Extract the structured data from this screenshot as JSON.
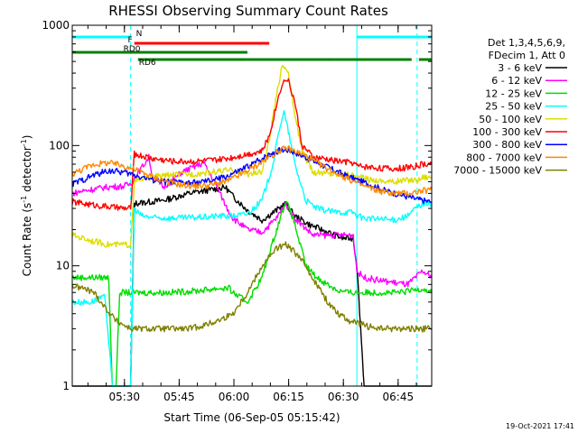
{
  "chart_data": {
    "type": "line",
    "title": "RHESSI Observing Summary Count Rates",
    "xlabel": "Start Time (06-Sep-05 05:15:42)",
    "ylabel": "Count Rate (s",
    "ylabel_sup": "-1",
    "ylabel_suffix": " detector",
    "ylabel_close": ")",
    "y_scale": "log",
    "ylim": [
      1,
      1000
    ],
    "xlim_minutes": [
      0,
      98.5
    ],
    "y_ticks": [
      {
        "label": "1",
        "value": 1
      },
      {
        "label": "10",
        "value": 10
      },
      {
        "label": "100",
        "value": 100
      },
      {
        "label": "1000",
        "value": 1000
      }
    ],
    "x_ticks": [
      {
        "label": "05:30",
        "minute": 14.3
      },
      {
        "label": "05:45",
        "minute": 29.3
      },
      {
        "label": "06:00",
        "minute": 44.3
      },
      {
        "label": "06:15",
        "minute": 59.3
      },
      {
        "label": "06:30",
        "minute": 74.3
      },
      {
        "label": "06:45",
        "minute": 89.3
      }
    ],
    "legend_header": [
      "Det 1,3,4,5,6,9,",
      "FDecim 1, Att 0"
    ],
    "series": [
      {
        "name": "3 - 6 keV",
        "color": "#000000",
        "points": [
          [
            0,
            1
          ],
          [
            16,
            1
          ],
          [
            17,
            33
          ],
          [
            25,
            35
          ],
          [
            32,
            40
          ],
          [
            42,
            45
          ],
          [
            44,
            38
          ],
          [
            48,
            29
          ],
          [
            52,
            24
          ],
          [
            56,
            29
          ],
          [
            58.5,
            33
          ],
          [
            61,
            26
          ],
          [
            65,
            22
          ],
          [
            70,
            19
          ],
          [
            74,
            17
          ],
          [
            77,
            17
          ],
          [
            78,
            10
          ],
          [
            80,
            1
          ],
          [
            98.5,
            1
          ]
        ]
      },
      {
        "name": "6 - 12 keV",
        "color": "#ff00ff",
        "points": [
          [
            0,
            40
          ],
          [
            3,
            42
          ],
          [
            9,
            45
          ],
          [
            14,
            46
          ],
          [
            16,
            48
          ],
          [
            21,
            80
          ],
          [
            22,
            55
          ],
          [
            25,
            45
          ],
          [
            30,
            60
          ],
          [
            36,
            72
          ],
          [
            39,
            50
          ],
          [
            42,
            32
          ],
          [
            44,
            25
          ],
          [
            48,
            20
          ],
          [
            52,
            19
          ],
          [
            56,
            25
          ],
          [
            58.5,
            33
          ],
          [
            61,
            25
          ],
          [
            66,
            18
          ],
          [
            72,
            18
          ],
          [
            77,
            18
          ],
          [
            78,
            9
          ],
          [
            80,
            8
          ],
          [
            85,
            7.5
          ],
          [
            92,
            7
          ],
          [
            96,
            9
          ],
          [
            98.5,
            8
          ]
        ]
      },
      {
        "name": "12 - 25 keV",
        "color": "#00dd00",
        "points": [
          [
            0,
            8
          ],
          [
            6,
            8
          ],
          [
            10,
            8
          ],
          [
            11,
            1
          ],
          [
            12,
            1
          ],
          [
            13,
            6
          ],
          [
            14,
            6
          ],
          [
            18,
            6
          ],
          [
            26,
            6
          ],
          [
            34,
            6.2
          ],
          [
            40,
            6.5
          ],
          [
            43,
            6.5
          ],
          [
            44,
            6
          ],
          [
            48,
            5
          ],
          [
            52,
            8
          ],
          [
            56,
            20
          ],
          [
            58.5,
            35
          ],
          [
            60.5,
            25
          ],
          [
            64,
            10
          ],
          [
            67,
            8
          ],
          [
            70,
            7
          ],
          [
            73,
            6.2
          ],
          [
            76,
            6
          ],
          [
            79,
            6
          ],
          [
            84,
            6
          ],
          [
            90,
            6
          ],
          [
            96,
            6.5
          ],
          [
            98.5,
            6
          ]
        ]
      },
      {
        "name": "25 - 50 keV",
        "color": "#00ffff",
        "points": [
          [
            0,
            5
          ],
          [
            5,
            5
          ],
          [
            9,
            5.5
          ],
          [
            11,
            1
          ],
          [
            16,
            1
          ],
          [
            17,
            30
          ],
          [
            19,
            26
          ],
          [
            23,
            25
          ],
          [
            30,
            25
          ],
          [
            37,
            25.5
          ],
          [
            40,
            26
          ],
          [
            44,
            26
          ],
          [
            48,
            27
          ],
          [
            52,
            35
          ],
          [
            55,
            70
          ],
          [
            57,
            150
          ],
          [
            58,
            190
          ],
          [
            59.5,
            120
          ],
          [
            61,
            70
          ],
          [
            64,
            35
          ],
          [
            67,
            30
          ],
          [
            72,
            28
          ],
          [
            77,
            28
          ],
          [
            78,
            26
          ],
          [
            80,
            25
          ],
          [
            88,
            24
          ],
          [
            92,
            26
          ],
          [
            94,
            30
          ],
          [
            96,
            33
          ],
          [
            98.5,
            33
          ]
        ]
      },
      {
        "name": "50 - 100 keV",
        "color": "#dddd00",
        "points": [
          [
            0,
            18
          ],
          [
            3,
            17
          ],
          [
            6,
            16
          ],
          [
            10,
            15
          ],
          [
            14,
            15
          ],
          [
            16,
            15
          ],
          [
            17,
            50
          ],
          [
            22,
            55
          ],
          [
            27,
            57
          ],
          [
            33,
            58
          ],
          [
            38,
            60
          ],
          [
            42,
            62
          ],
          [
            44,
            62
          ],
          [
            48,
            58
          ],
          [
            52,
            60
          ],
          [
            54,
            110
          ],
          [
            56,
            260
          ],
          [
            57.5,
            470
          ],
          [
            59,
            430
          ],
          [
            61,
            180
          ],
          [
            63,
            90
          ],
          [
            66,
            60
          ],
          [
            72,
            58
          ],
          [
            77,
            57
          ],
          [
            78,
            55
          ],
          [
            82,
            52
          ],
          [
            88,
            50
          ],
          [
            92,
            52
          ],
          [
            95,
            52
          ],
          [
            96,
            55
          ],
          [
            98.5,
            55
          ]
        ]
      },
      {
        "name": "100 - 300 keV",
        "color": "#ff0000",
        "points": [
          [
            0,
            34
          ],
          [
            3,
            33
          ],
          [
            6,
            32
          ],
          [
            10,
            31
          ],
          [
            14,
            30
          ],
          [
            16,
            30
          ],
          [
            17,
            85
          ],
          [
            22,
            78
          ],
          [
            28,
            74
          ],
          [
            34,
            74
          ],
          [
            40,
            76
          ],
          [
            44,
            80
          ],
          [
            48,
            85
          ],
          [
            52,
            90
          ],
          [
            54,
            120
          ],
          [
            56,
            220
          ],
          [
            57.5,
            330
          ],
          [
            59,
            360
          ],
          [
            61,
            230
          ],
          [
            63,
            100
          ],
          [
            66,
            80
          ],
          [
            72,
            75
          ],
          [
            77,
            72
          ],
          [
            78,
            68
          ],
          [
            82,
            66
          ],
          [
            88,
            64
          ],
          [
            92,
            66
          ],
          [
            95,
            68
          ],
          [
            96,
            70
          ],
          [
            98.5,
            70
          ]
        ]
      },
      {
        "name": "300 - 800 keV",
        "color": "#0000ff",
        "points": [
          [
            0,
            48
          ],
          [
            3,
            52
          ],
          [
            6,
            57
          ],
          [
            10,
            62
          ],
          [
            14,
            60
          ],
          [
            18,
            56
          ],
          [
            22,
            52
          ],
          [
            26,
            50
          ],
          [
            30,
            49
          ],
          [
            34,
            49
          ],
          [
            38,
            51
          ],
          [
            42,
            55
          ],
          [
            46,
            62
          ],
          [
            50,
            72
          ],
          [
            54,
            85
          ],
          [
            57,
            92
          ],
          [
            59,
            92
          ],
          [
            61,
            88
          ],
          [
            64,
            80
          ],
          [
            67,
            72
          ],
          [
            70,
            66
          ],
          [
            73,
            60
          ],
          [
            76,
            55
          ],
          [
            78,
            52
          ],
          [
            82,
            47
          ],
          [
            86,
            42
          ],
          [
            90,
            39
          ],
          [
            94,
            36
          ],
          [
            96,
            35
          ],
          [
            98.5,
            34
          ]
        ]
      },
      {
        "name": "800 - 7000 keV",
        "color": "#ff8800",
        "points": [
          [
            0,
            58
          ],
          [
            3,
            64
          ],
          [
            6,
            70
          ],
          [
            10,
            72
          ],
          [
            14,
            68
          ],
          [
            18,
            62
          ],
          [
            22,
            55
          ],
          [
            26,
            50
          ],
          [
            30,
            47
          ],
          [
            34,
            46
          ],
          [
            38,
            47
          ],
          [
            42,
            50
          ],
          [
            46,
            57
          ],
          [
            50,
            67
          ],
          [
            54,
            80
          ],
          [
            57,
            92
          ],
          [
            59,
            95
          ],
          [
            61,
            90
          ],
          [
            64,
            82
          ],
          [
            67,
            72
          ],
          [
            70,
            64
          ],
          [
            73,
            58
          ],
          [
            76,
            52
          ],
          [
            80,
            46
          ],
          [
            84,
            42
          ],
          [
            88,
            40
          ],
          [
            92,
            40
          ],
          [
            96,
            42
          ],
          [
            98.5,
            43
          ]
        ]
      },
      {
        "name": "7000 - 15000 keV",
        "color": "#808000",
        "points": [
          [
            0,
            6.8
          ],
          [
            3,
            6.5
          ],
          [
            6,
            6
          ],
          [
            9,
            4.5
          ],
          [
            12,
            3.5
          ],
          [
            16,
            3
          ],
          [
            20,
            3
          ],
          [
            26,
            3
          ],
          [
            32,
            3
          ],
          [
            36,
            3.2
          ],
          [
            40,
            3.5
          ],
          [
            44,
            4
          ],
          [
            48,
            6
          ],
          [
            52,
            10
          ],
          [
            56,
            14
          ],
          [
            58.5,
            15
          ],
          [
            61,
            13
          ],
          [
            64,
            10
          ],
          [
            67,
            7
          ],
          [
            70,
            5
          ],
          [
            73,
            4
          ],
          [
            76,
            3.5
          ],
          [
            80,
            3.2
          ],
          [
            84,
            3
          ],
          [
            90,
            3
          ],
          [
            96,
            3
          ],
          [
            98.5,
            3
          ]
        ]
      }
    ],
    "coverage_markers": [
      {
        "label": "N",
        "start_minute": 0,
        "end_minute": 16,
        "color": "#00ffff"
      },
      {
        "label": "",
        "start_minute": 78,
        "end_minute": 98.5,
        "color": "#00ffff"
      },
      {
        "label": "F",
        "start_minute": 17,
        "end_minute": 54,
        "color": "#ff0000"
      },
      {
        "label": "RD0",
        "start_minute": 0,
        "end_minute": 48,
        "color": "#008000"
      },
      {
        "label": "RD6",
        "start_minute": 18,
        "end_minute": 48,
        "color": "#008000"
      },
      {
        "label": "",
        "start_minute": 48,
        "end_minute": 72,
        "color": "#008000"
      },
      {
        "label": "",
        "start_minute": 72,
        "end_minute": 93,
        "color": "#008000"
      },
      {
        "label": "",
        "start_minute": 95,
        "end_minute": 98.5,
        "color": "#008000"
      }
    ],
    "night_boundaries": [
      {
        "minute": 0,
        "style": "solid"
      },
      {
        "minute": 16,
        "style": "dashed"
      },
      {
        "minute": 78,
        "style": "solid"
      },
      {
        "minute": 94.5,
        "style": "dashed"
      }
    ]
  },
  "footer": {
    "timestamp": "19-Oct-2021 17:41"
  },
  "colors": {
    "background": "#ffffff",
    "axis": "#000000",
    "night_line": "#00ffff"
  }
}
